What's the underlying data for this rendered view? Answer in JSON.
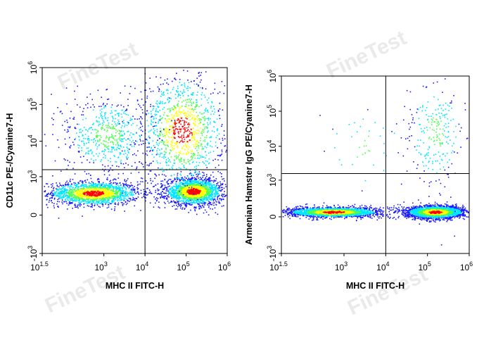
{
  "watermark": {
    "text": "FineTest",
    "mark": "®"
  },
  "colors": {
    "gate_line": "#000000",
    "frame": "#000000",
    "density_low": "#1a1aff",
    "density_mid": "#00e5ff",
    "density_midhigh": "#4cff4c",
    "density_high": "#ffff00",
    "density_peak": "#ff0000"
  },
  "chart_data": [
    {
      "type": "scatter",
      "subtype": "flow-cytometry-density-dotplot",
      "title": "",
      "xlabel": "MHC II FITC-H",
      "ylabel": "CD11c PE-/Cyanine7-H",
      "x_scale": "biexponential",
      "y_scale": "biexponential",
      "xlim": [
        31.6,
        1000000
      ],
      "ylim": [
        -1000,
        1000000
      ],
      "x_ticks": [
        {
          "value": 31.6,
          "base": "10",
          "exp": "1.5"
        },
        {
          "value": 1000,
          "base": "10",
          "exp": "3"
        },
        {
          "value": 10000,
          "base": "10",
          "exp": "4"
        },
        {
          "value": 100000,
          "base": "10",
          "exp": "5"
        },
        {
          "value": 1000000,
          "base": "10",
          "exp": "6"
        }
      ],
      "y_ticks": [
        {
          "value": -1000,
          "base": "-10",
          "exp": "3"
        },
        {
          "value": 0,
          "base": "0",
          "exp": ""
        },
        {
          "value": 1000,
          "base": "10",
          "exp": "3"
        },
        {
          "value": 10000,
          "base": "10",
          "exp": "4"
        },
        {
          "value": 100000,
          "base": "10",
          "exp": "5"
        },
        {
          "value": 1000000,
          "base": "10",
          "exp": "6"
        }
      ],
      "gate": {
        "x": 10000,
        "y": 1600
      },
      "populations": [
        {
          "cx": 550,
          "cy": 300,
          "n": 1700,
          "sx": 0.55,
          "sy": 0.16
        },
        {
          "cx": 150000,
          "cy": 350,
          "n": 1900,
          "sx": 0.35,
          "sy": 0.18
        },
        {
          "cx": 80000,
          "cy": 20000,
          "n": 1100,
          "sx": 0.5,
          "sy": 0.75
        },
        {
          "cx": 1200,
          "cy": 15000,
          "n": 600,
          "sx": 0.55,
          "sy": 0.55
        }
      ]
    },
    {
      "type": "scatter",
      "subtype": "flow-cytometry-density-dotplot",
      "title": "",
      "xlabel": "MHC II FITC-H",
      "ylabel": "Armenian Hamster IgG PE/Cyanine7-H",
      "x_scale": "biexponential",
      "y_scale": "biexponential",
      "xlim": [
        31.6,
        1000000
      ],
      "ylim": [
        -1000,
        1000000
      ],
      "x_ticks": [
        {
          "value": 31.6,
          "base": "10",
          "exp": "1.5"
        },
        {
          "value": 1000,
          "base": "10",
          "exp": "3"
        },
        {
          "value": 10000,
          "base": "10",
          "exp": "4"
        },
        {
          "value": 100000,
          "base": "10",
          "exp": "5"
        },
        {
          "value": 1000000,
          "base": "10",
          "exp": "6"
        }
      ],
      "y_ticks": [
        {
          "value": -1000,
          "base": "-10",
          "exp": "3"
        },
        {
          "value": 0,
          "base": "0",
          "exp": ""
        },
        {
          "value": 1000,
          "base": "10",
          "exp": "3"
        },
        {
          "value": 10000,
          "base": "10",
          "exp": "4"
        },
        {
          "value": 100000,
          "base": "10",
          "exp": "5"
        },
        {
          "value": 1000000,
          "base": "10",
          "exp": "6"
        }
      ],
      "gate": {
        "x": 10000,
        "y": 1600
      },
      "populations": [
        {
          "cx": 550,
          "cy": 40,
          "n": 2200,
          "sx": 0.55,
          "sy": 0.07
        },
        {
          "cx": 150000,
          "cy": 40,
          "n": 2400,
          "sx": 0.35,
          "sy": 0.09
        },
        {
          "cx": 150000,
          "cy": 25000,
          "n": 260,
          "sx": 0.35,
          "sy": 0.8
        },
        {
          "cx": 3000,
          "cy": 8000,
          "n": 40,
          "sx": 0.6,
          "sy": 0.7
        }
      ]
    }
  ]
}
